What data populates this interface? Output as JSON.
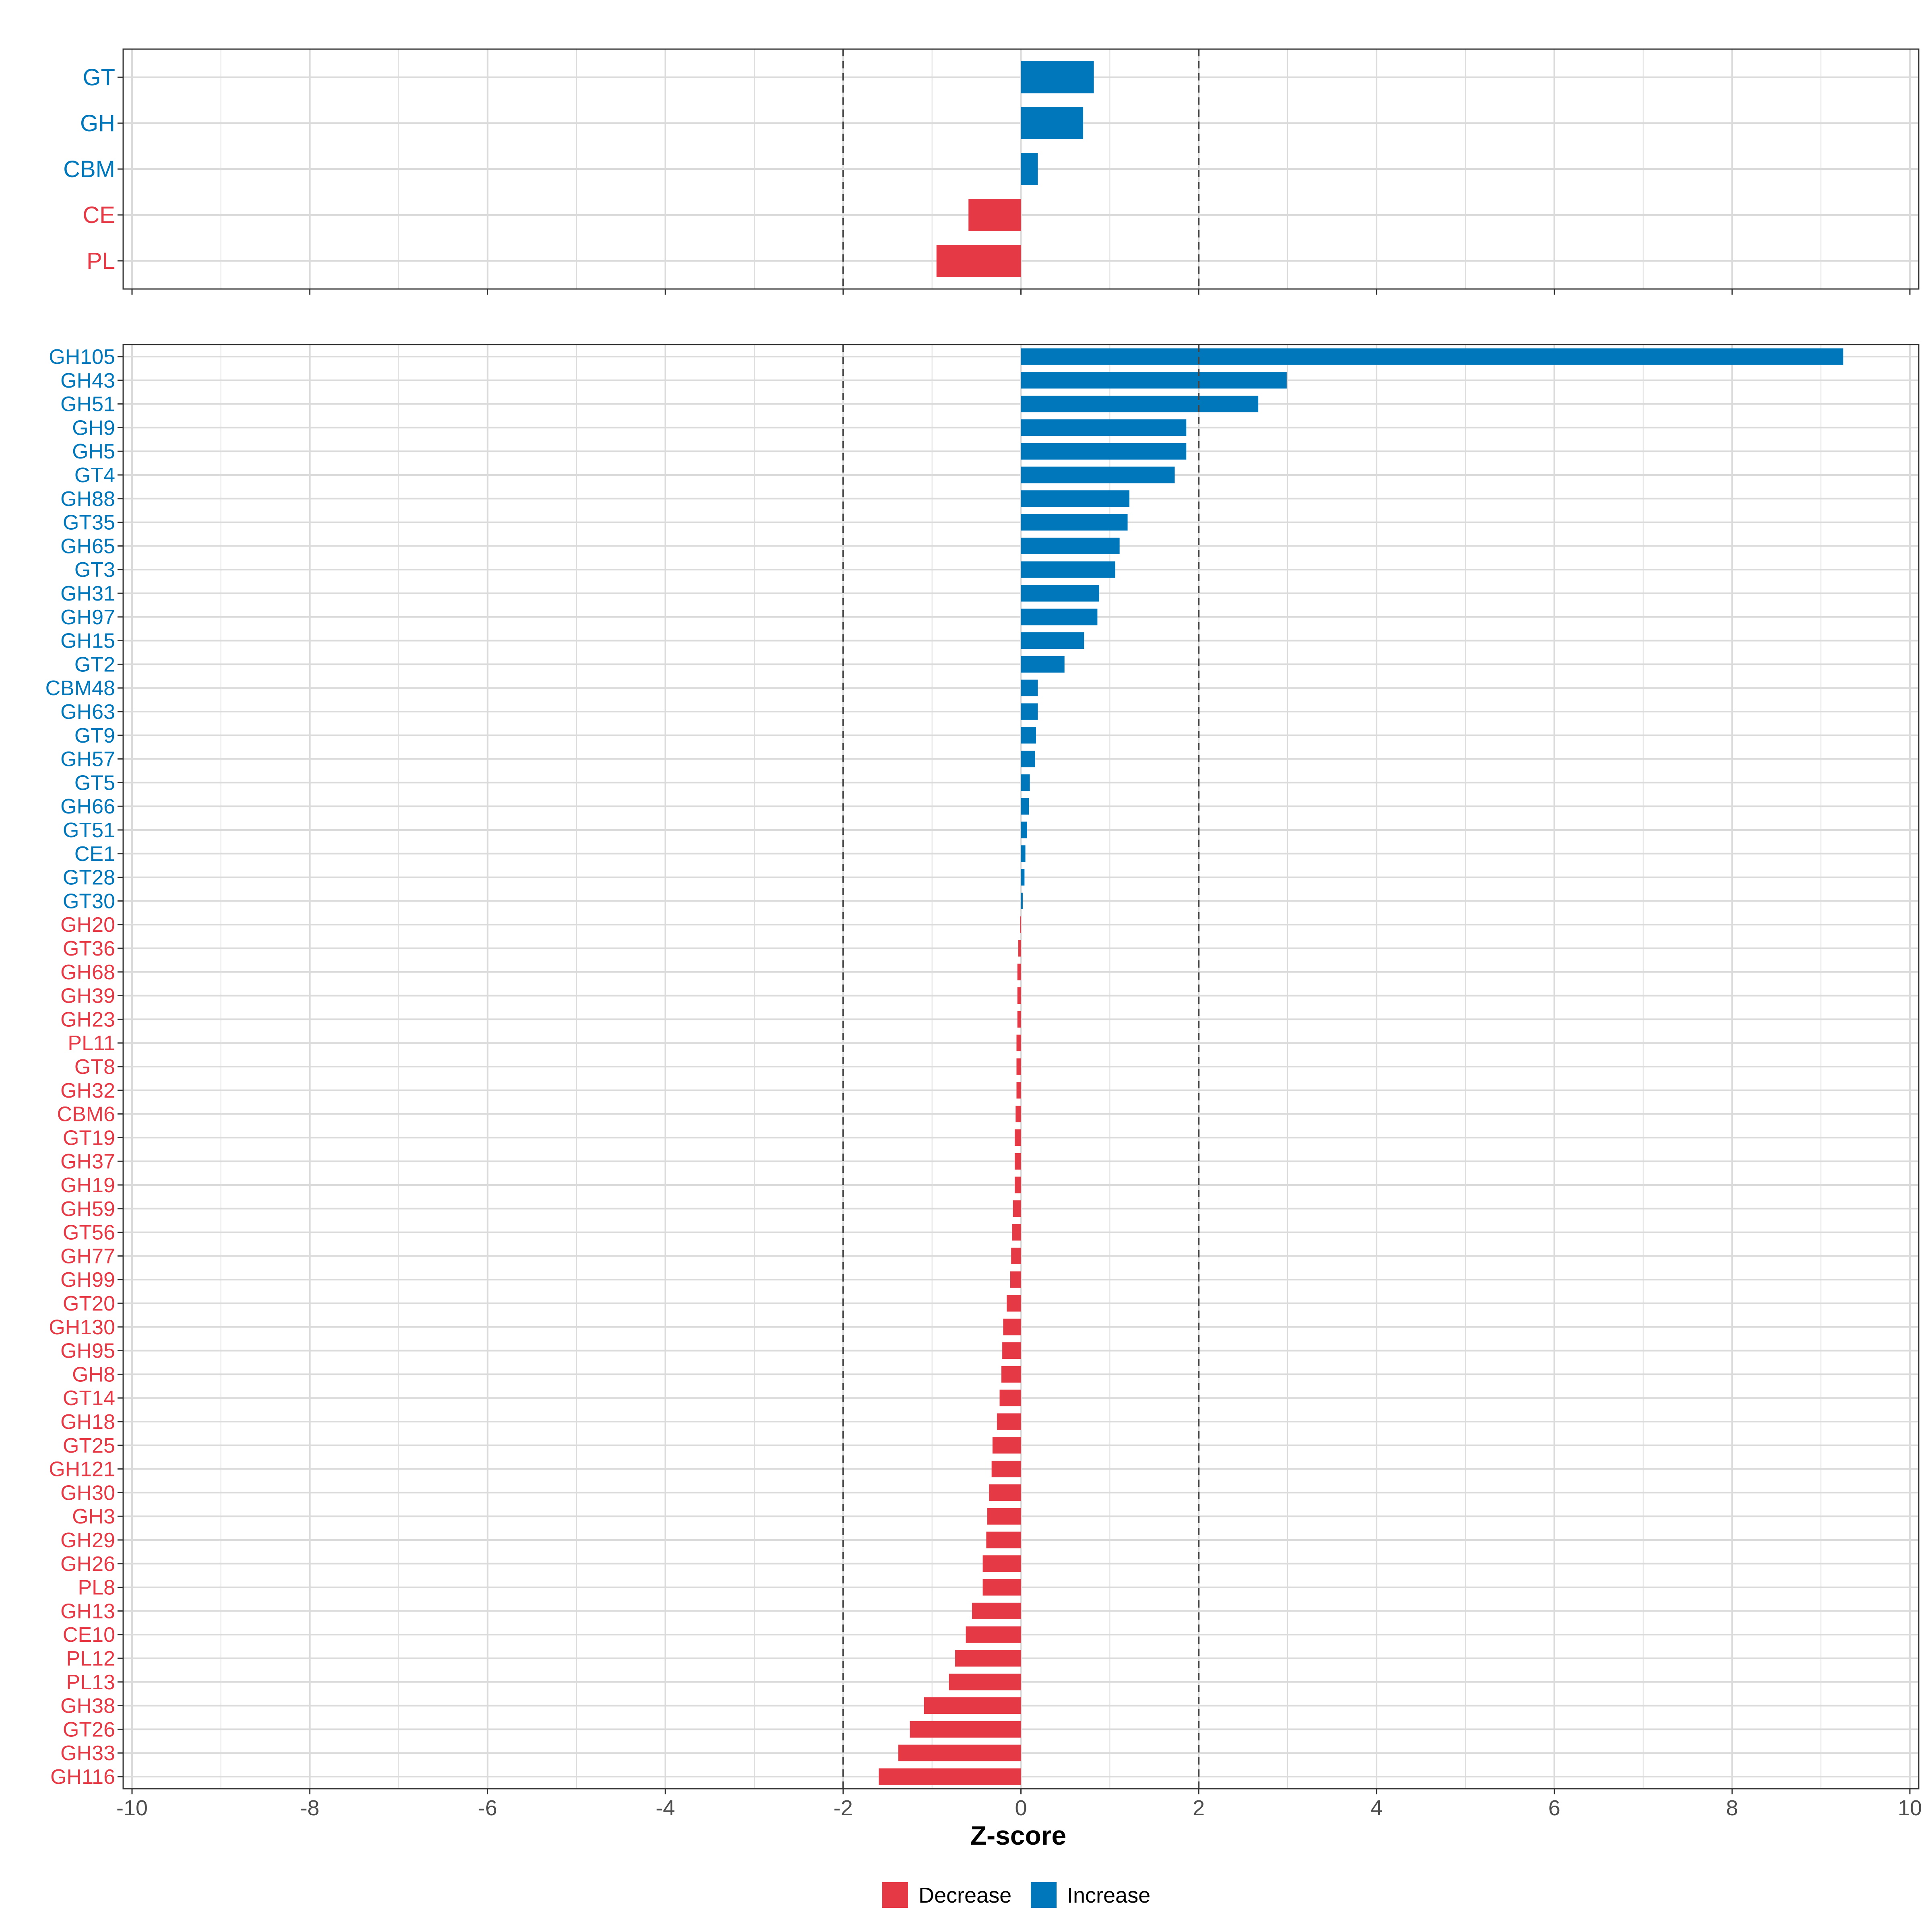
{
  "colors": {
    "increase": "#0077BB",
    "decrease": "#E63946",
    "grid": "#DBDBDB",
    "panel_border": "#333333",
    "threshold": "#444444",
    "axis_text": "#4D4D4D"
  },
  "chart_data": [
    {
      "type": "bar",
      "orientation": "horizontal",
      "panel": "top",
      "categories": [
        "GT",
        "GH",
        "CBM",
        "CE",
        "PL"
      ],
      "values": [
        0.82,
        0.7,
        0.19,
        -0.59,
        -0.95
      ],
      "xlim": [
        -10,
        10
      ],
      "thresholds": [
        -2,
        2
      ],
      "grid": true
    },
    {
      "type": "bar",
      "orientation": "horizontal",
      "panel": "bottom",
      "categories": [
        "GH105",
        "GH43",
        "GH51",
        "GH9",
        "GH5",
        "GT4",
        "GH88",
        "GT35",
        "GH65",
        "GT3",
        "GH31",
        "GH97",
        "GH15",
        "GT2",
        "CBM48",
        "GH63",
        "GT9",
        "GH57",
        "GT5",
        "GH66",
        "GT51",
        "CE1",
        "GT28",
        "GT30",
        "GH20",
        "GT36",
        "GH68",
        "GH39",
        "GH23",
        "PL11",
        "GT8",
        "GH32",
        "CBM6",
        "GT19",
        "GH37",
        "GH19",
        "GH59",
        "GT56",
        "GH77",
        "GH99",
        "GT20",
        "GH130",
        "GH95",
        "GH8",
        "GT14",
        "GH18",
        "GT25",
        "GH121",
        "GH30",
        "GH3",
        "GH29",
        "GH26",
        "PL8",
        "GH13",
        "CE10",
        "PL12",
        "PL13",
        "GH38",
        "GT26",
        "GH33",
        "GH116"
      ],
      "values": [
        9.25,
        2.99,
        2.67,
        1.86,
        1.86,
        1.73,
        1.22,
        1.2,
        1.11,
        1.06,
        0.88,
        0.86,
        0.71,
        0.49,
        0.19,
        0.19,
        0.17,
        0.16,
        0.1,
        0.09,
        0.07,
        0.05,
        0.04,
        0.02,
        -0.01,
        -0.03,
        -0.04,
        -0.04,
        -0.04,
        -0.05,
        -0.05,
        -0.05,
        -0.06,
        -0.07,
        -0.07,
        -0.07,
        -0.09,
        -0.1,
        -0.11,
        -0.12,
        -0.16,
        -0.2,
        -0.21,
        -0.22,
        -0.24,
        -0.27,
        -0.32,
        -0.33,
        -0.36,
        -0.38,
        -0.39,
        -0.43,
        -0.43,
        -0.55,
        -0.62,
        -0.74,
        -0.81,
        -1.09,
        -1.25,
        -1.38,
        -1.6
      ],
      "xlim": [
        -10,
        10
      ],
      "xticks": [
        -10,
        -8,
        -6,
        -4,
        -2,
        0,
        2,
        4,
        6,
        8,
        10
      ],
      "xlabel": "Z-score",
      "thresholds": [
        -2,
        2
      ],
      "grid": true
    }
  ],
  "legend": {
    "items": [
      {
        "label": "Decrease",
        "color_key": "decrease"
      },
      {
        "label": "Increase",
        "color_key": "increase"
      }
    ],
    "position": "bottom-center"
  }
}
